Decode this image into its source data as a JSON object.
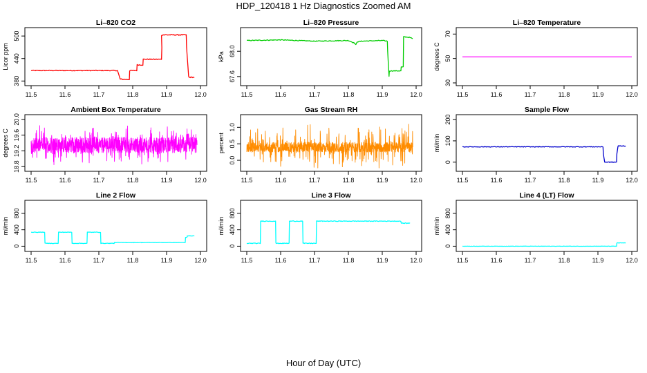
{
  "page": {
    "title": "HDP_120418  1 Hz Diagnostics Zoomed AM",
    "xlabel": "Hour of Day (UTC)"
  },
  "chart_data": [
    {
      "id": "p1",
      "type": "line",
      "title": "Li–820 CO2",
      "ylabel": "Licor ppm",
      "color": "#ff0000",
      "ylim": [
        375,
        515
      ],
      "yticks": [
        380,
        440,
        500
      ],
      "xlim": [
        11.5,
        12.0
      ],
      "xticks": [
        11.5,
        11.6,
        11.7,
        11.8,
        11.9,
        12.0
      ],
      "series": [
        {
          "x": [
            11.5,
            11.755,
            11.756,
            11.763,
            11.764,
            11.79,
            11.791,
            11.812,
            11.813,
            11.83,
            11.831,
            11.885,
            11.886,
            11.885,
            11.886,
            11.958,
            11.959,
            11.965,
            11.966,
            11.982
          ],
          "y": [
            408,
            408,
            405,
            385,
            385,
            384,
            408,
            408,
            423,
            423,
            438,
            438,
            470,
            500,
            503,
            503,
            470,
            393,
            390,
            390
          ],
          "noise": 1.2
        }
      ]
    },
    {
      "id": "p2",
      "type": "line",
      "title": "Li–820 Pressure",
      "ylabel": "kPa",
      "color": "#00cc00",
      "ylim": [
        67.5,
        68.33
      ],
      "yticks": [
        67.6,
        68.0
      ],
      "xlim": [
        11.5,
        12.0
      ],
      "xticks": [
        11.5,
        11.6,
        11.7,
        11.8,
        11.9,
        12.0
      ],
      "series": [
        {
          "x": [
            11.5,
            11.6,
            11.7,
            11.8,
            11.818,
            11.822,
            11.826,
            11.84,
            11.9,
            11.915,
            11.916,
            11.918,
            11.92,
            11.921,
            11.955,
            11.956,
            11.962,
            11.963,
            11.98,
            11.99
          ],
          "y": [
            68.17,
            68.18,
            68.16,
            68.17,
            68.13,
            68.1,
            68.15,
            68.16,
            68.17,
            68.16,
            68.0,
            67.8,
            67.6,
            67.69,
            67.69,
            67.75,
            67.75,
            68.23,
            68.22,
            68.2
          ],
          "noise": 0.006
        }
      ]
    },
    {
      "id": "p3",
      "type": "line",
      "title": "Li–820 Temperature",
      "ylabel": "degrees C",
      "color": "#ff00ff",
      "ylim": [
        30,
        73
      ],
      "yticks": [
        30,
        50,
        70
      ],
      "xlim": [
        11.5,
        12.0
      ],
      "xticks": [
        11.5,
        11.6,
        11.7,
        11.8,
        11.9,
        12.0
      ],
      "series": [
        {
          "x": [
            11.5,
            12.0
          ],
          "y": [
            51.3,
            51.3
          ],
          "noise": 0
        }
      ]
    },
    {
      "id": "p4",
      "type": "line",
      "title": "Ambient Box Temperature",
      "ylabel": "degrees C",
      "color": "#ff00ff",
      "ylim": [
        18.75,
        20.05
      ],
      "yticks": [
        18.8,
        19.2,
        19.6,
        20.0
      ],
      "xlim": [
        11.5,
        12.0
      ],
      "xticks": [
        11.5,
        11.6,
        11.7,
        11.8,
        11.9,
        12.0
      ],
      "series": [
        {
          "x": [
            11.5,
            11.99
          ],
          "y": [
            19.35,
            19.35
          ],
          "noise": 0.2,
          "spikes": 0.35,
          "dense": true
        }
      ]
    },
    {
      "id": "p5",
      "type": "line",
      "title": "Gas Stream RH",
      "ylabel": "percent",
      "color": "#ff8c00",
      "ylim": [
        -0.25,
        1.3
      ],
      "yticks": [
        0.0,
        0.5,
        1.0
      ],
      "xlim": [
        11.5,
        12.0
      ],
      "xticks": [
        11.5,
        11.6,
        11.7,
        11.8,
        11.9,
        12.0
      ],
      "series": [
        {
          "x": [
            11.5,
            11.99
          ],
          "y": [
            0.4,
            0.4
          ],
          "noise": 0.15,
          "spikes": 0.55,
          "dense": true
        }
      ]
    },
    {
      "id": "p6",
      "type": "line",
      "title": "Sample Flow",
      "ylabel": "ml/min",
      "color": "#0000cc",
      "ylim": [
        -30,
        210
      ],
      "yticks": [
        0,
        100,
        200
      ],
      "xlim": [
        11.5,
        12.0
      ],
      "xticks": [
        11.5,
        11.6,
        11.7,
        11.8,
        11.9,
        12.0
      ],
      "series": [
        {
          "x": [
            11.5,
            11.915,
            11.916,
            11.92,
            11.921,
            11.955,
            11.956,
            11.959,
            11.96,
            11.982
          ],
          "y": [
            72,
            72,
            40,
            0,
            0,
            0,
            40,
            72,
            76,
            76
          ],
          "noise": 1.5
        }
      ]
    },
    {
      "id": "p7",
      "type": "line",
      "title": "Line 2 Flow",
      "ylabel": "ml/min",
      "color": "#00ffff",
      "ylim": [
        -60,
        1050
      ],
      "yticks": [
        0,
        400,
        800
      ],
      "xlim": [
        11.5,
        12.0
      ],
      "xticks": [
        11.5,
        11.6,
        11.7,
        11.8,
        11.9,
        12.0
      ],
      "series": [
        {
          "x": [
            11.5,
            11.54,
            11.541,
            11.58,
            11.581,
            11.62,
            11.621,
            11.665,
            11.666,
            11.705,
            11.706,
            11.745,
            11.746,
            11.955,
            11.956,
            11.96,
            11.961,
            11.982
          ],
          "y": [
            340,
            340,
            70,
            70,
            340,
            340,
            70,
            70,
            340,
            340,
            70,
            70,
            90,
            90,
            210,
            210,
            250,
            250
          ],
          "noise": 6
        }
      ]
    },
    {
      "id": "p8",
      "type": "line",
      "title": "Line 3 Flow",
      "ylabel": "ml/min",
      "color": "#00ffff",
      "ylim": [
        -60,
        1050
      ],
      "yticks": [
        0,
        400,
        800
      ],
      "xlim": [
        11.5,
        12.0
      ],
      "xticks": [
        11.5,
        11.6,
        11.7,
        11.8,
        11.9,
        12.0
      ],
      "series": [
        {
          "x": [
            11.5,
            11.54,
            11.541,
            11.585,
            11.586,
            11.625,
            11.626,
            11.665,
            11.666,
            11.705,
            11.706,
            11.955,
            11.956,
            11.982
          ],
          "y": [
            70,
            70,
            610,
            610,
            70,
            70,
            610,
            610,
            70,
            70,
            610,
            610,
            560,
            560
          ],
          "noise": 8
        }
      ]
    },
    {
      "id": "p9",
      "type": "line",
      "title": "Line 4 (LT) Flow",
      "ylabel": "ml/min",
      "color": "#00ffff",
      "ylim": [
        -60,
        1050
      ],
      "yticks": [
        0,
        400,
        800
      ],
      "xlim": [
        11.5,
        12.0
      ],
      "xticks": [
        11.5,
        11.6,
        11.7,
        11.8,
        11.9,
        12.0
      ],
      "series": [
        {
          "x": [
            11.5,
            11.955,
            11.956,
            11.982
          ],
          "y": [
            0,
            0,
            80,
            80
          ],
          "noise": 3
        }
      ]
    }
  ]
}
